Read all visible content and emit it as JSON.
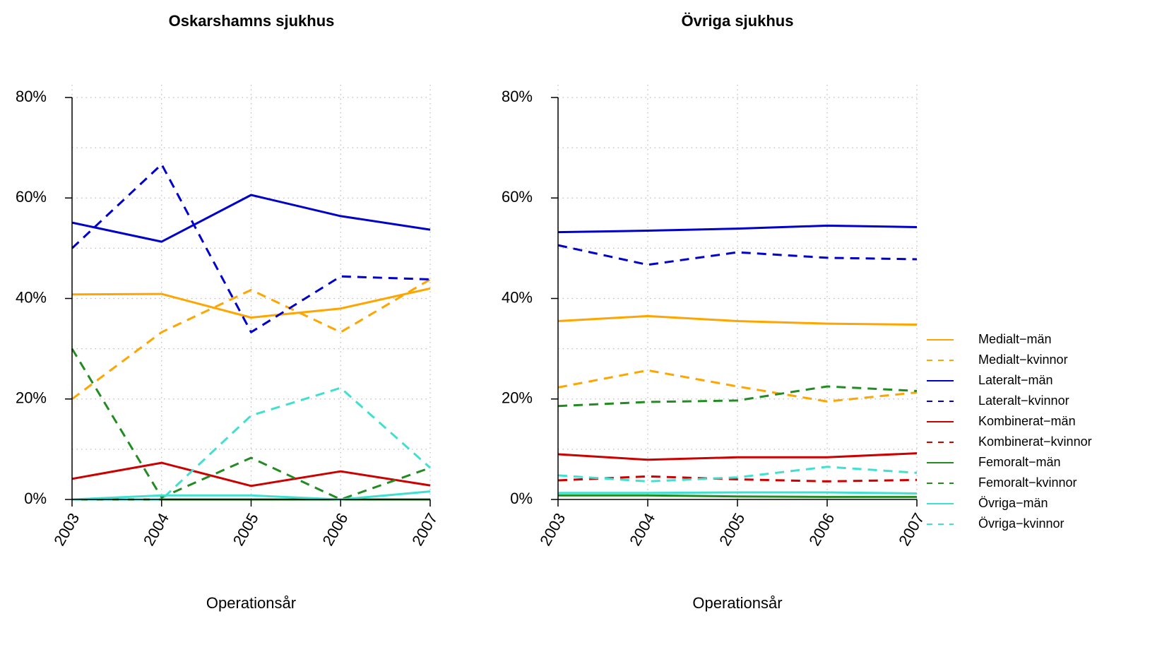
{
  "chart_data": [
    {
      "type": "line",
      "title": "Oskarshamns sjukhus",
      "xlabel": "Operationsår",
      "ylabel": "",
      "x": [
        "2003",
        "2004",
        "2005",
        "2006",
        "2007"
      ],
      "ylim": [
        0,
        80
      ],
      "yticks": [
        "0%",
        "20%",
        "40%",
        "60%",
        "80%"
      ],
      "grid": true,
      "series": [
        {
          "name": "Medialt−män",
          "color": "#FFA500",
          "dash": false,
          "values": [
            40.8,
            40.9,
            36.2,
            38.0,
            42.0
          ]
        },
        {
          "name": "Medialt−kvinnor",
          "color": "#FFA500",
          "dash": true,
          "values": [
            20.0,
            33.3,
            41.7,
            33.3,
            43.8
          ]
        },
        {
          "name": "Lateralt−män",
          "color": "#0000CD",
          "dash": false,
          "values": [
            55.1,
            51.3,
            60.6,
            56.4,
            53.7
          ]
        },
        {
          "name": "Lateralt−kvinnor",
          "color": "#0000CD",
          "dash": true,
          "values": [
            50.0,
            66.7,
            33.3,
            44.4,
            43.8
          ]
        },
        {
          "name": "Kombinerat−män",
          "color": "#CD0000",
          "dash": false,
          "values": [
            4.1,
            7.3,
            2.7,
            5.6,
            2.8
          ]
        },
        {
          "name": "Kombinerat−kvinnor",
          "color": "#CD0000",
          "dash": true,
          "values": [
            0,
            0,
            0,
            0,
            0
          ]
        },
        {
          "name": "Femoralt−män",
          "color": "#228B22",
          "dash": false,
          "values": [
            0,
            0,
            0,
            0,
            0
          ]
        },
        {
          "name": "Femoralt−kvinnor",
          "color": "#228B22",
          "dash": true,
          "values": [
            30.0,
            0.4,
            8.3,
            0,
            6.3
          ]
        },
        {
          "name": "Övriga−män",
          "color": "#40E0D0",
          "dash": false,
          "values": [
            0,
            0.8,
            0.8,
            0,
            1.6
          ]
        },
        {
          "name": "Övriga−kvinnor",
          "color": "#40E0D0",
          "dash": true,
          "values": [
            0,
            0,
            16.7,
            22.2,
            6.3
          ]
        }
      ]
    },
    {
      "type": "line",
      "title": "Övriga sjukhus",
      "xlabel": "Operationsår",
      "ylabel": "",
      "x": [
        "2003",
        "2004",
        "2005",
        "2006",
        "2007"
      ],
      "ylim": [
        0,
        80
      ],
      "yticks": [
        "0%",
        "20%",
        "40%",
        "60%",
        "80%"
      ],
      "grid": true,
      "legend_position": "right",
      "series": [
        {
          "name": "Medialt−män",
          "color": "#FFA500",
          "dash": false,
          "values": [
            35.5,
            36.5,
            35.5,
            35.0,
            34.8
          ]
        },
        {
          "name": "Medialt−kvinnor",
          "color": "#FFA500",
          "dash": true,
          "values": [
            22.3,
            25.7,
            22.5,
            19.5,
            21.3
          ]
        },
        {
          "name": "Lateralt−män",
          "color": "#0000CD",
          "dash": false,
          "values": [
            53.2,
            53.5,
            53.9,
            54.5,
            54.2
          ]
        },
        {
          "name": "Lateralt−kvinnor",
          "color": "#0000CD",
          "dash": true,
          "values": [
            50.6,
            46.7,
            49.2,
            48.1,
            47.8
          ]
        },
        {
          "name": "Kombinerat−män",
          "color": "#CD0000",
          "dash": false,
          "values": [
            9.0,
            7.9,
            8.4,
            8.4,
            9.2
          ]
        },
        {
          "name": "Kombinerat−kvinnor",
          "color": "#CD0000",
          "dash": true,
          "values": [
            3.8,
            4.6,
            4.0,
            3.6,
            3.9
          ]
        },
        {
          "name": "Femoralt−män",
          "color": "#228B22",
          "dash": false,
          "values": [
            0.8,
            0.8,
            0.6,
            0.5,
            0.5
          ]
        },
        {
          "name": "Femoralt−kvinnor",
          "color": "#228B22",
          "dash": true,
          "values": [
            18.6,
            19.4,
            19.7,
            22.5,
            21.6
          ]
        },
        {
          "name": "Övriga−män",
          "color": "#40E0D0",
          "dash": false,
          "values": [
            1.3,
            1.3,
            1.4,
            1.4,
            1.2
          ]
        },
        {
          "name": "Övriga−kvinnor",
          "color": "#40E0D0",
          "dash": true,
          "values": [
            4.8,
            3.6,
            4.4,
            6.5,
            5.3
          ]
        }
      ]
    }
  ]
}
